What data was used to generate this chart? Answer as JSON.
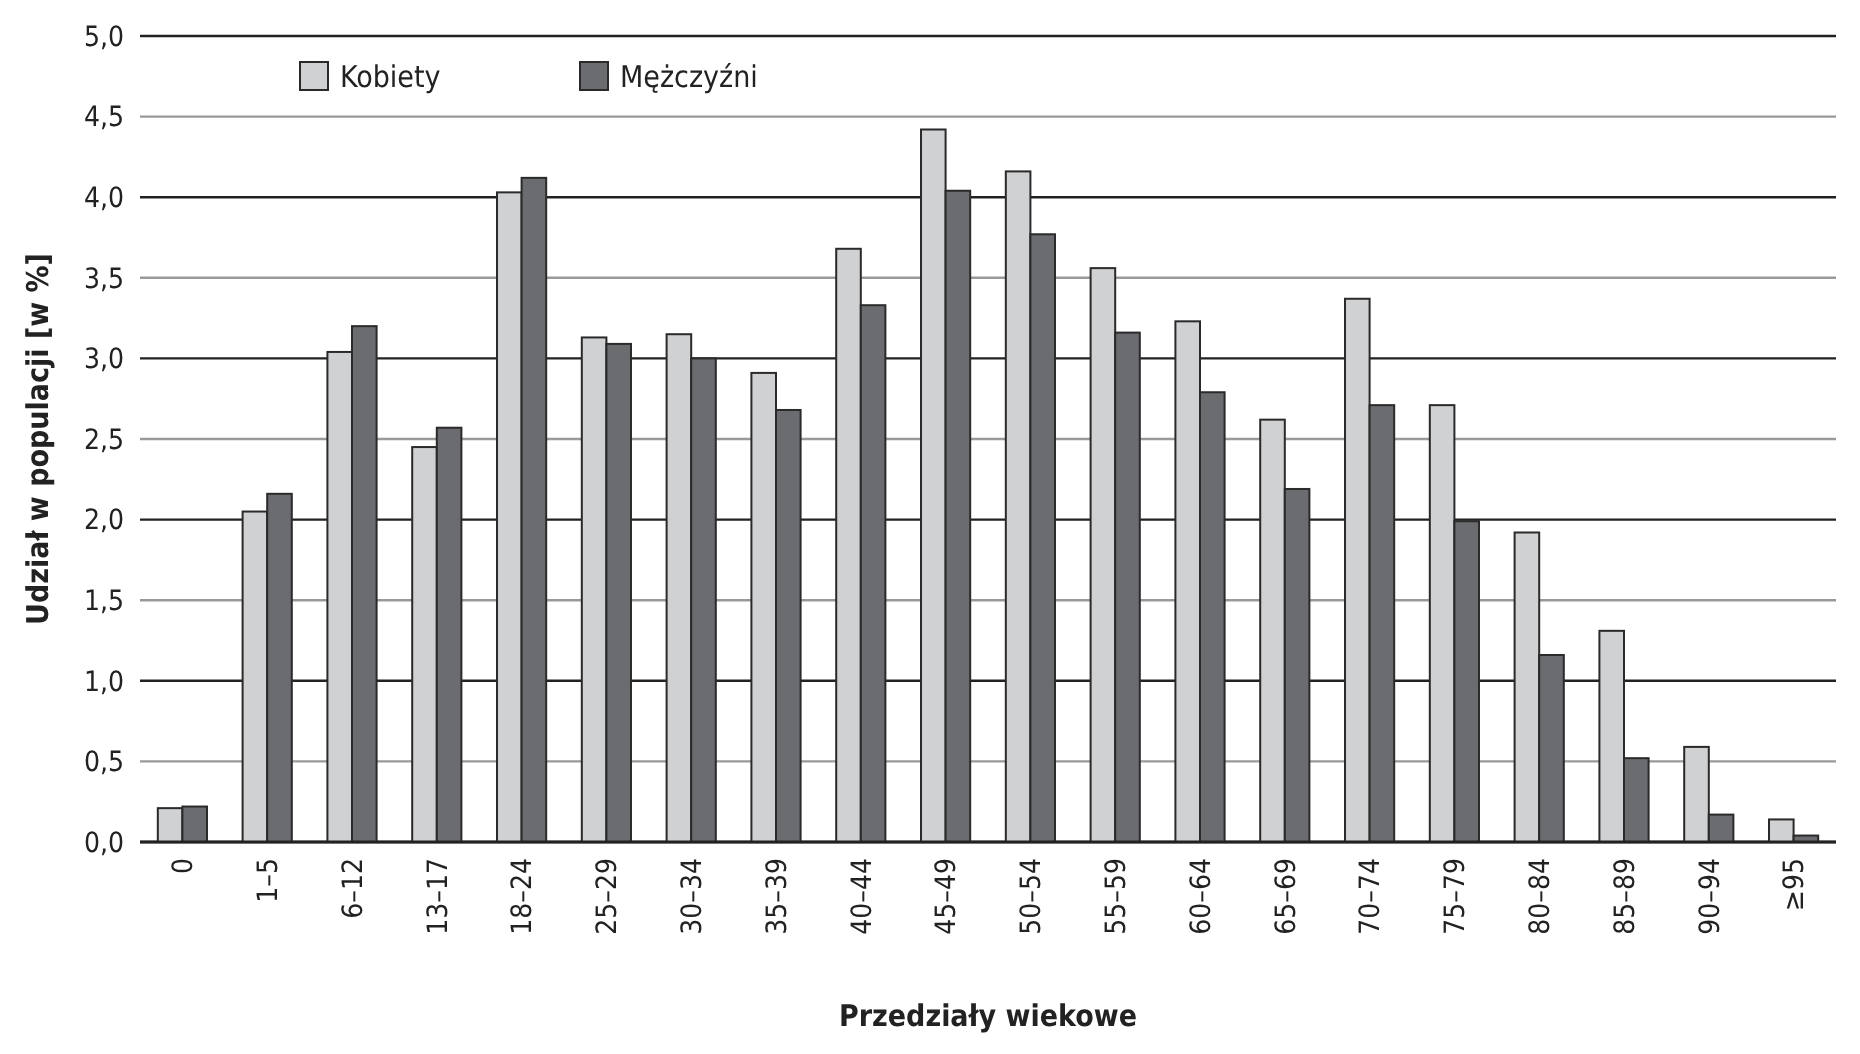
{
  "chart_data": {
    "type": "bar",
    "xlabel": "Przedziały wiekowe",
    "ylabel": "Udział w populacji [w %]",
    "categories": [
      "0",
      "1–5",
      "6–12",
      "13–17",
      "18–24",
      "25–29",
      "30–34",
      "35–39",
      "40–44",
      "45–49",
      "50–54",
      "55–59",
      "60–64",
      "65–69",
      "70–74",
      "75–79",
      "80–84",
      "85–89",
      "90–94",
      "≥95"
    ],
    "series": [
      {
        "name": "Kobiety",
        "color": "#d0d1d3",
        "values": [
          0.21,
          2.05,
          3.04,
          2.45,
          4.03,
          3.13,
          3.15,
          2.91,
          3.68,
          4.42,
          4.16,
          3.56,
          3.23,
          2.62,
          3.37,
          2.71,
          1.92,
          1.31,
          0.59,
          0.14
        ]
      },
      {
        "name": "Mężczyźni",
        "color": "#6b6c70",
        "values": [
          0.22,
          2.16,
          3.2,
          2.57,
          4.12,
          3.09,
          3.0,
          2.68,
          3.33,
          4.04,
          3.77,
          3.16,
          2.79,
          2.19,
          2.71,
          1.99,
          1.16,
          0.52,
          0.17,
          0.04
        ]
      }
    ],
    "ylim": [
      0,
      5
    ],
    "yticks": [
      {
        "value": 0,
        "label": "0,0"
      },
      {
        "value": 0.5,
        "label": "0,5"
      },
      {
        "value": 1,
        "label": "1,0"
      },
      {
        "value": 1.5,
        "label": "1,5"
      },
      {
        "value": 2,
        "label": "2,0"
      },
      {
        "value": 2.5,
        "label": "2,5"
      },
      {
        "value": 3,
        "label": "3,0"
      },
      {
        "value": 3.5,
        "label": "3,5"
      },
      {
        "value": 4,
        "label": "4,0"
      },
      {
        "value": 4.5,
        "label": "4,5"
      },
      {
        "value": 5,
        "label": "5,0"
      }
    ],
    "grid": "y",
    "legend": "top left"
  }
}
